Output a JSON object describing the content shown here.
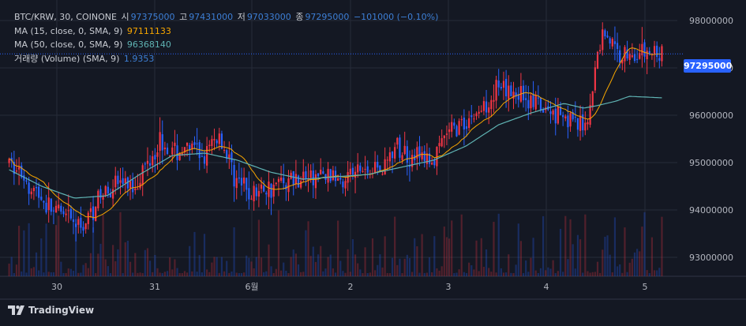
{
  "legend": {
    "symbol": "BTC/KRW, 30, COINONE",
    "open_label": "시",
    "open": "97375000",
    "high_label": "고",
    "high": "97431000",
    "low_label": "저",
    "low": "97033000",
    "close_label": "종",
    "close": "97295000",
    "change": "−101000 (−0.10%)",
    "ma15_label": "MA (15, close, 0, SMA, 9)",
    "ma15_value": "97111133",
    "ma50_label": "MA (50, close, 0, SMA, 9)",
    "ma50_value": "96368140",
    "vol_label": "거래량 (Volume) (SMA, 9)",
    "vol_value": "1.9353"
  },
  "branding": {
    "name": "TradingView"
  },
  "last_price_label": "97295000",
  "colors": {
    "background": "#141823",
    "up": "#f23645",
    "down": "#2962ff",
    "ma15": "#f7a600",
    "ma50": "#5fb3b3",
    "grid": "#262b38",
    "text": "#b2b5be"
  },
  "chart_data": {
    "type": "candlestick",
    "x_ticks": [
      "30",
      "31",
      "6월",
      "2",
      "3",
      "4",
      "5"
    ],
    "y_ticks": [
      "98000000",
      "97000000",
      "96000000",
      "95000000",
      "94000000",
      "93000000"
    ],
    "ylim": [
      92600000,
      98300000
    ],
    "last_price": 97295000,
    "series": [
      {
        "name": "MA (15, close, 0, SMA, 9)",
        "last": 97111133
      },
      {
        "name": "MA (50, close, 0, SMA, 9)",
        "last": 96368140
      },
      {
        "name": "거래량 (Volume) (SMA, 9)",
        "last": 1.9353
      }
    ],
    "close_path": [
      [
        0,
        95000000
      ],
      [
        0.03,
        94600000
      ],
      [
        0.06,
        94050000
      ],
      [
        0.09,
        93800000
      ],
      [
        0.11,
        93600000
      ],
      [
        0.13,
        94100000
      ],
      [
        0.16,
        94600000
      ],
      [
        0.19,
        94500000
      ],
      [
        0.21,
        94950000
      ],
      [
        0.23,
        95500000
      ],
      [
        0.25,
        95200000
      ],
      [
        0.28,
        95300000
      ],
      [
        0.3,
        95100000
      ],
      [
        0.32,
        95600000
      ],
      [
        0.35,
        94600000
      ],
      [
        0.37,
        94300000
      ],
      [
        0.4,
        94500000
      ],
      [
        0.43,
        94650000
      ],
      [
        0.46,
        94700000
      ],
      [
        0.49,
        94700000
      ],
      [
        0.52,
        94750000
      ],
      [
        0.55,
        94850000
      ],
      [
        0.57,
        94900000
      ],
      [
        0.59,
        95300000
      ],
      [
        0.61,
        95200000
      ],
      [
        0.63,
        95100000
      ],
      [
        0.65,
        95000000
      ],
      [
        0.67,
        95600000
      ],
      [
        0.7,
        95900000
      ],
      [
        0.72,
        96050000
      ],
      [
        0.745,
        96550000
      ],
      [
        0.76,
        96450000
      ],
      [
        0.78,
        96500000
      ],
      [
        0.8,
        96300000
      ],
      [
        0.82,
        96050000
      ],
      [
        0.84,
        96100000
      ],
      [
        0.86,
        95950000
      ],
      [
        0.87,
        95700000
      ],
      [
        0.88,
        95800000
      ],
      [
        0.89,
        96100000
      ],
      [
        0.9,
        97200000
      ],
      [
        0.91,
        97800000
      ],
      [
        0.92,
        97600000
      ],
      [
        0.93,
        97300000
      ],
      [
        1.0,
        97295000
      ]
    ],
    "ma50_path": [
      [
        0,
        94850000
      ],
      [
        0.05,
        94500000
      ],
      [
        0.1,
        94250000
      ],
      [
        0.15,
        94300000
      ],
      [
        0.2,
        94750000
      ],
      [
        0.25,
        95150000
      ],
      [
        0.3,
        95200000
      ],
      [
        0.35,
        95050000
      ],
      [
        0.4,
        94800000
      ],
      [
        0.45,
        94650000
      ],
      [
        0.5,
        94700000
      ],
      [
        0.55,
        94750000
      ],
      [
        0.6,
        94900000
      ],
      [
        0.65,
        95050000
      ],
      [
        0.7,
        95350000
      ],
      [
        0.75,
        95800000
      ],
      [
        0.8,
        96050000
      ],
      [
        0.85,
        96250000
      ],
      [
        0.88,
        96150000
      ],
      [
        0.9,
        96200000
      ],
      [
        0.93,
        96300000
      ],
      [
        0.95,
        96400000
      ],
      [
        1.0,
        96368140
      ]
    ]
  }
}
